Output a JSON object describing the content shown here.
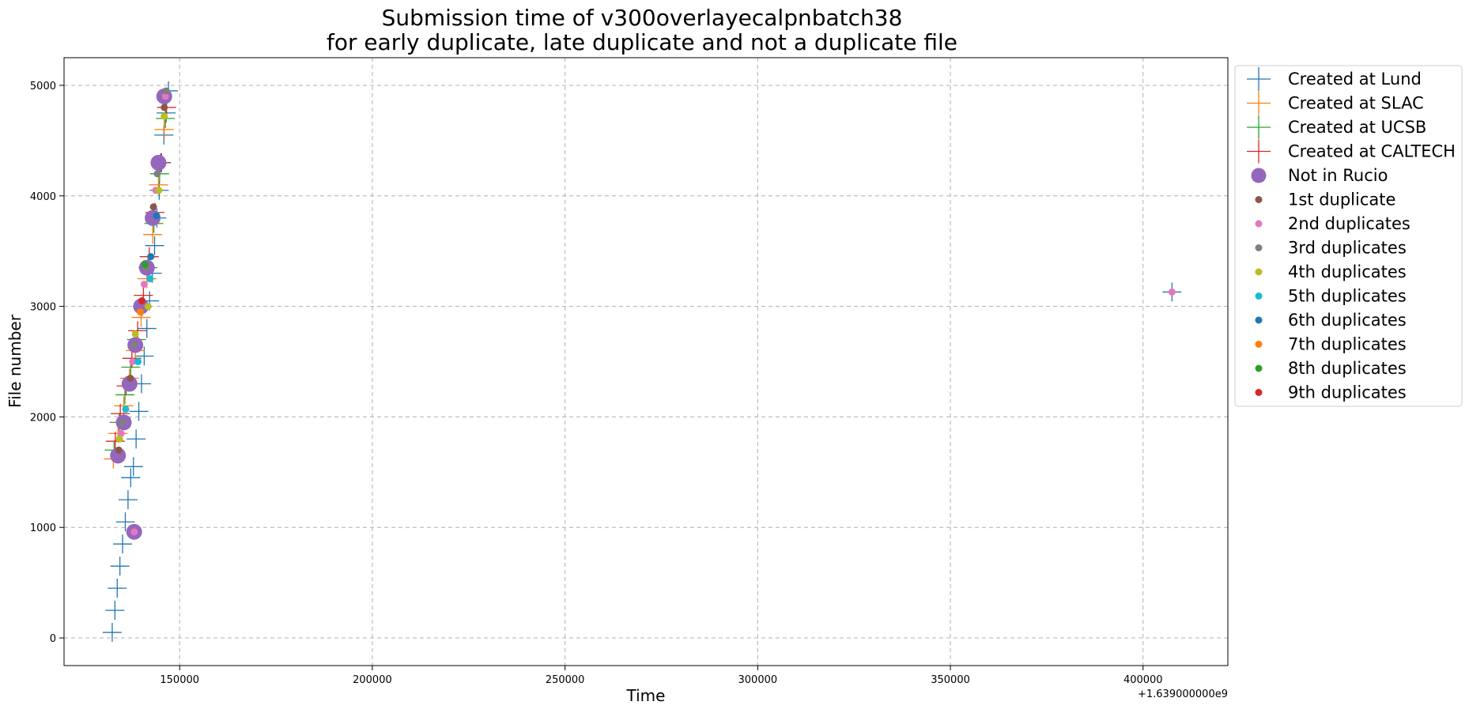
{
  "chart_data": {
    "type": "scatter",
    "title_lines": [
      "Submission time of v300overlayecalpnbatch38",
      "for early duplicate, late duplicate and not a duplicate file"
    ],
    "xlabel": "Time",
    "ylabel": "File number",
    "x_offset_label": "+1.639000000e9",
    "xlim": [
      120000,
      422000
    ],
    "ylim": [
      -250,
      5250
    ],
    "x_ticks": [
      150000,
      200000,
      250000,
      300000,
      350000,
      400000
    ],
    "x_tick_labels": [
      "150000",
      "200000",
      "250000",
      "300000",
      "350000",
      "400000"
    ],
    "y_ticks": [
      0,
      1000,
      2000,
      3000,
      4000,
      5000
    ],
    "y_tick_labels": [
      "0",
      "1000",
      "2000",
      "3000",
      "4000",
      "5000"
    ],
    "grid": true,
    "legend_position": "outside-right-top",
    "series": [
      {
        "name": "Created at Lund",
        "marker": "plus",
        "color": "#1f77b4",
        "x": [
          132500,
          133200,
          133800,
          134500,
          135200,
          135900,
          136600,
          137300,
          138000,
          138700,
          139400,
          140100,
          140800,
          141500,
          142200,
          142900,
          143500,
          144100,
          144700,
          145300,
          145900,
          146500,
          147100,
          407500
        ],
        "y": [
          50,
          250,
          450,
          650,
          850,
          1050,
          1250,
          1450,
          1550,
          1800,
          2050,
          2300,
          2550,
          2800,
          3050,
          3300,
          3550,
          3800,
          4050,
          4300,
          4550,
          4750,
          4950,
          3130
        ]
      },
      {
        "name": "Created at SLAC",
        "marker": "plus",
        "color": "#ff7f0e",
        "x": [
          132800,
          134000,
          135500,
          137000,
          138500,
          140000,
          141500,
          143000,
          144500,
          146000
        ],
        "y": [
          1620,
          1850,
          2100,
          2350,
          2600,
          2900,
          3250,
          3650,
          4100,
          4600
        ]
      },
      {
        "name": "Created at UCSB",
        "marker": "plus",
        "color": "#2ca02c",
        "x": [
          133000,
          134300,
          135800,
          137300,
          138800,
          140300,
          141800,
          143300,
          144800,
          146300
        ],
        "y": [
          1700,
          1950,
          2200,
          2450,
          2700,
          3000,
          3350,
          3750,
          4200,
          4700
        ]
      },
      {
        "name": "Created at CALTECH",
        "marker": "plus",
        "color": "#d62728",
        "x": [
          133300,
          134600,
          136100,
          137600,
          139100,
          140600,
          142100,
          143600,
          145100,
          146600
        ],
        "y": [
          1780,
          2030,
          2280,
          2530,
          2780,
          3100,
          3450,
          3850,
          4300,
          4800
        ]
      },
      {
        "name": "Not in Rucio",
        "marker": "circle-large",
        "color": "#9467bd",
        "x": [
          134000,
          135500,
          137000,
          138500,
          140000,
          141500,
          143000,
          144500,
          146000,
          138200
        ],
        "y": [
          1650,
          1950,
          2300,
          2650,
          3000,
          3350,
          3800,
          4300,
          4900,
          960
        ]
      },
      {
        "name": "1st duplicate",
        "marker": "circle-small",
        "color": "#8c564b",
        "x": [
          134200,
          137200,
          140200,
          143200,
          146000
        ],
        "y": [
          1700,
          2350,
          3050,
          3900,
          4800
        ]
      },
      {
        "name": "2nd duplicates",
        "marker": "circle-small",
        "color": "#e377c2",
        "x": [
          134800,
          137800,
          140800,
          143800,
          146300,
          138200,
          407500
        ],
        "y": [
          1850,
          2500,
          3200,
          4050,
          4900,
          960,
          3130
        ]
      },
      {
        "name": "3rd duplicates",
        "marker": "circle-small",
        "color": "#7f7f7f",
        "x": [
          135200,
          138200,
          141200,
          144200,
          146500
        ],
        "y": [
          1950,
          2650,
          3350,
          4200,
          4950
        ]
      },
      {
        "name": "4th duplicates",
        "marker": "circle-small",
        "color": "#bcbd22",
        "x": [
          134400,
          138500,
          141800,
          144600,
          146000
        ],
        "y": [
          1800,
          2750,
          3000,
          4050,
          4720
        ]
      },
      {
        "name": "5th duplicates",
        "marker": "circle-small",
        "color": "#17becf",
        "x": [
          136000,
          139200,
          142300
        ],
        "y": [
          2070,
          2500,
          3250
        ]
      },
      {
        "name": "6th duplicates",
        "marker": "circle-small",
        "color": "#1f77b4",
        "x": [
          142500,
          144000
        ],
        "y": [
          3450,
          3820
        ]
      },
      {
        "name": "7th duplicates",
        "marker": "circle-small",
        "color": "#ff7f0e",
        "x": [
          139800
        ],
        "y": [
          2950
        ]
      },
      {
        "name": "8th duplicates",
        "marker": "circle-small",
        "color": "#2ca02c",
        "x": [
          141000
        ],
        "y": [
          3380
        ]
      },
      {
        "name": "9th duplicates",
        "marker": "circle-small",
        "color": "#d62728",
        "x": [
          140200
        ],
        "y": [
          3050
        ]
      }
    ]
  }
}
